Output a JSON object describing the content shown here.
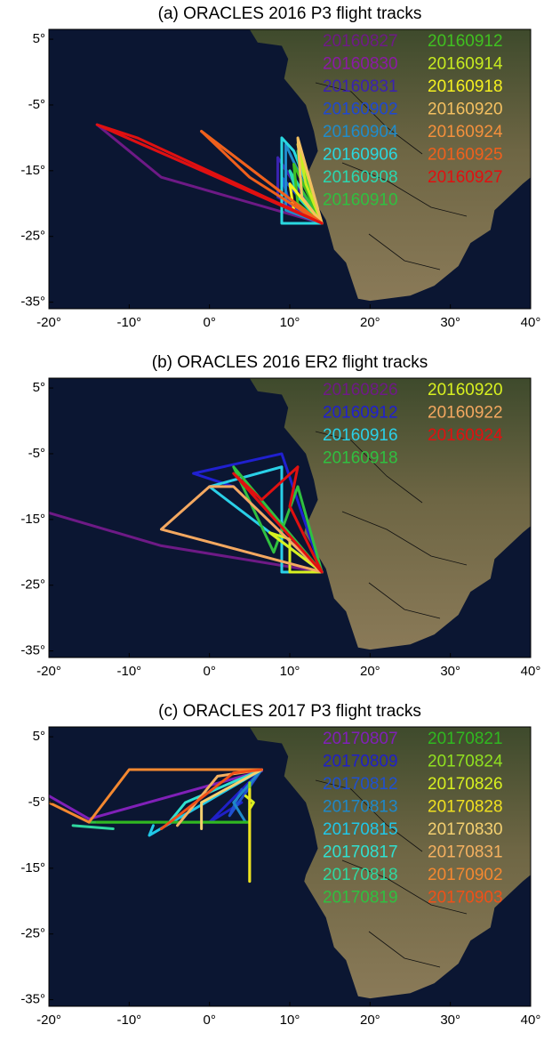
{
  "chart_data": [
    {
      "type": "line",
      "title": "(a) ORACLES 2016 P3 flight tracks",
      "xlim": [
        -20,
        40
      ],
      "ylim": [
        -36,
        6.5
      ],
      "xticks": [
        {
          "value": -20,
          "label": "-20°"
        },
        {
          "value": -10,
          "label": "-10°"
        },
        {
          "value": 0,
          "label": "0°"
        },
        {
          "value": 10,
          "label": "10°"
        },
        {
          "value": 20,
          "label": "20°"
        },
        {
          "value": 30,
          "label": "30°"
        },
        {
          "value": 40,
          "label": "40°"
        }
      ],
      "yticks": [
        {
          "value": 5,
          "label": "5°"
        },
        {
          "value": -5,
          "label": "-5°"
        },
        {
          "value": -15,
          "label": "-15°"
        },
        {
          "value": -25,
          "label": "-25°"
        },
        {
          "value": -35,
          "label": "-35°"
        }
      ],
      "series": [
        {
          "name": "20160827",
          "color": "#6e1a86",
          "x": [
            14,
            -14,
            -6,
            14
          ],
          "values": [
            -23,
            -8,
            -16,
            -23
          ]
        },
        {
          "name": "20160830",
          "color": "#8c1aa6",
          "x": [
            14,
            9,
            9,
            14
          ],
          "values": [
            -23,
            -14,
            -20,
            -23
          ]
        },
        {
          "name": "20160831",
          "color": "#3a22b0",
          "x": [
            14,
            8.5,
            8.5,
            14
          ],
          "values": [
            -23,
            -13,
            -19,
            -23
          ]
        },
        {
          "name": "20160902",
          "color": "#1f48d0",
          "x": [
            14,
            9,
            10,
            14
          ],
          "values": [
            -23,
            -16,
            -20,
            -23
          ]
        },
        {
          "name": "20160904",
          "color": "#1f8ccc",
          "x": [
            14,
            9.5,
            9.5,
            14
          ],
          "values": [
            -23,
            -11,
            -21,
            -23
          ]
        },
        {
          "name": "20160906",
          "color": "#2ad8e0",
          "x": [
            14,
            9,
            9,
            10.5,
            14
          ],
          "values": [
            -23,
            -23,
            -10,
            -12,
            -23
          ]
        },
        {
          "name": "20160908",
          "color": "#2ad8b0",
          "x": [
            14,
            10,
            11,
            14
          ],
          "values": [
            -23,
            -15,
            -19,
            -23
          ]
        },
        {
          "name": "20160910",
          "color": "#30c040",
          "x": [
            14,
            11,
            11.5,
            14
          ],
          "values": [
            -23,
            -12,
            -18,
            -23
          ]
        },
        {
          "name": "20160912",
          "color": "#40c020",
          "x": [
            14,
            10.5,
            11,
            14
          ],
          "values": [
            -23,
            -14,
            -20,
            -23
          ]
        },
        {
          "name": "20160914",
          "color": "#c8ec20",
          "x": [
            14,
            11,
            12,
            14
          ],
          "values": [
            -23,
            -11,
            -17,
            -23
          ]
        },
        {
          "name": "20160918",
          "color": "#f4f020",
          "x": [
            14,
            10,
            10.5,
            14
          ],
          "values": [
            -23,
            -17,
            -21,
            -23
          ]
        },
        {
          "name": "20160920",
          "color": "#f4c060",
          "x": [
            14,
            11,
            11.5,
            14
          ],
          "values": [
            -23,
            -10,
            -19,
            -23
          ]
        },
        {
          "name": "20160924",
          "color": "#f4903c",
          "x": [
            14,
            -1,
            14
          ],
          "values": [
            -23,
            -9,
            -23
          ]
        },
        {
          "name": "20160925",
          "color": "#f0601c",
          "x": [
            14,
            5,
            -1,
            14
          ],
          "values": [
            -23,
            -16,
            -9,
            -23
          ]
        },
        {
          "name": "20160927",
          "color": "#e01010",
          "x": [
            14,
            -14,
            -9,
            14
          ],
          "values": [
            -23,
            -8,
            -10,
            -23
          ]
        }
      ]
    },
    {
      "type": "line",
      "title": "(b) ORACLES 2016 ER2 flight tracks",
      "xlim": [
        -20,
        40
      ],
      "ylim": [
        -36,
        6.5
      ],
      "xticks": [
        {
          "value": -20,
          "label": "-20°"
        },
        {
          "value": -10,
          "label": "-10°"
        },
        {
          "value": 0,
          "label": "0°"
        },
        {
          "value": 10,
          "label": "10°"
        },
        {
          "value": 20,
          "label": "20°"
        },
        {
          "value": 30,
          "label": "30°"
        },
        {
          "value": 40,
          "label": "40°"
        }
      ],
      "yticks": [
        {
          "value": 5,
          "label": "5°"
        },
        {
          "value": -5,
          "label": "-5°"
        },
        {
          "value": -15,
          "label": "-15°"
        },
        {
          "value": -25,
          "label": "-25°"
        },
        {
          "value": -35,
          "label": "-35°"
        }
      ],
      "series": [
        {
          "name": "20160826",
          "color": "#6e1a86",
          "x": [
            -20,
            -6,
            14
          ],
          "values": [
            -14,
            -19,
            -23
          ]
        },
        {
          "name": "20160912",
          "color": "#2020d0",
          "x": [
            14,
            9,
            -2,
            3,
            14
          ],
          "values": [
            -23,
            -5,
            -8,
            -10,
            -23
          ]
        },
        {
          "name": "20160916",
          "color": "#2ad0e8",
          "x": [
            14,
            9,
            9,
            0,
            14
          ],
          "values": [
            -23,
            -23,
            -7,
            -10,
            -23
          ]
        },
        {
          "name": "20160918",
          "color": "#30c040",
          "x": [
            14,
            3,
            8,
            11,
            14
          ],
          "values": [
            -23,
            -7,
            -20,
            -10,
            -23
          ]
        },
        {
          "name": "20160920",
          "color": "#d8f020",
          "x": [
            14,
            7.5,
            10,
            10,
            14
          ],
          "values": [
            -23,
            -17,
            -18,
            -23,
            -23
          ]
        },
        {
          "name": "20160922",
          "color": "#f4a860",
          "x": [
            14,
            -6,
            0,
            3,
            14
          ],
          "values": [
            -23,
            -16.5,
            -10,
            -10,
            -23
          ]
        },
        {
          "name": "20160924",
          "color": "#e01010",
          "x": [
            14,
            3,
            6.5,
            11,
            10,
            14
          ],
          "values": [
            -23,
            -8,
            -12,
            -7,
            -13,
            -23
          ]
        }
      ]
    },
    {
      "type": "line",
      "title": "(c) ORACLES 2017 P3 flight tracks",
      "xlim": [
        -20,
        40
      ],
      "ylim": [
        -36,
        6.5
      ],
      "xticks": [
        {
          "value": -20,
          "label": "-20°"
        },
        {
          "value": -10,
          "label": "-10°"
        },
        {
          "value": 0,
          "label": "0°"
        },
        {
          "value": 10,
          "label": "10°"
        },
        {
          "value": 20,
          "label": "20°"
        },
        {
          "value": 30,
          "label": "30°"
        },
        {
          "value": 40,
          "label": "40°"
        }
      ],
      "yticks": [
        {
          "value": 5,
          "label": "5°"
        },
        {
          "value": -5,
          "label": "-5°"
        },
        {
          "value": -15,
          "label": "-15°"
        },
        {
          "value": -25,
          "label": "-25°"
        },
        {
          "value": -35,
          "label": "-35°"
        }
      ],
      "series": [
        {
          "name": "20170807",
          "color": "#8020b8",
          "x": [
            -20,
            -15,
            6.5
          ],
          "values": [
            -4,
            -7.5,
            -0.2
          ]
        },
        {
          "name": "20170809",
          "color": "#2020c8",
          "x": [
            6.5,
            0,
            4
          ],
          "values": [
            0,
            -8,
            -5
          ]
        },
        {
          "name": "20170812",
          "color": "#1f50d0",
          "x": [
            6.5,
            2.5,
            4
          ],
          "values": [
            0,
            -7,
            -3
          ]
        },
        {
          "name": "20170813",
          "color": "#1f88c8",
          "x": [
            6.5,
            3,
            4.5
          ],
          "values": [
            0,
            -5,
            -8
          ]
        },
        {
          "name": "20170815",
          "color": "#20c8e8",
          "x": [
            6.5,
            -7.5,
            -7
          ],
          "values": [
            0,
            -10,
            -8.5
          ]
        },
        {
          "name": "20170817",
          "color": "#30e0d0",
          "x": [
            6.5,
            -3,
            -5
          ],
          "values": [
            0,
            -5,
            -8
          ]
        },
        {
          "name": "20170818",
          "color": "#30d8a0",
          "x": [
            -17,
            -12
          ],
          "values": [
            -8.5,
            -9
          ]
        },
        {
          "name": "20170819",
          "color": "#30c040",
          "x": [
            -15,
            5,
            5
          ],
          "values": [
            -8,
            -8,
            -2
          ]
        },
        {
          "name": "20170821",
          "color": "#30b820",
          "x": [
            -14,
            5
          ],
          "values": [
            -8,
            -8
          ]
        },
        {
          "name": "20170824",
          "color": "#90e020",
          "x": [
            5,
            5
          ],
          "values": [
            -2,
            -17
          ]
        },
        {
          "name": "20170826",
          "color": "#d8f020",
          "x": [
            4.5,
            5.5,
            5
          ],
          "values": [
            -4,
            -5,
            -6
          ]
        },
        {
          "name": "20170828",
          "color": "#f0e020",
          "x": [
            5,
            5
          ],
          "values": [
            -3,
            -17
          ]
        },
        {
          "name": "20170830",
          "color": "#f4d070",
          "x": [
            6.5,
            -1,
            -1
          ],
          "values": [
            0,
            -5,
            -9
          ]
        },
        {
          "name": "20170831",
          "color": "#f4b060",
          "x": [
            6.5,
            1,
            -4
          ],
          "values": [
            0,
            -1,
            -8.5
          ]
        },
        {
          "name": "20170902",
          "color": "#f48830",
          "x": [
            -20,
            -15,
            -10,
            6.5
          ],
          "values": [
            -5,
            -8,
            0,
            0
          ]
        },
        {
          "name": "20170903",
          "color": "#f05018",
          "x": [
            6.5,
            3,
            -6
          ],
          "values": [
            0,
            -0.5,
            -9
          ]
        }
      ]
    }
  ]
}
